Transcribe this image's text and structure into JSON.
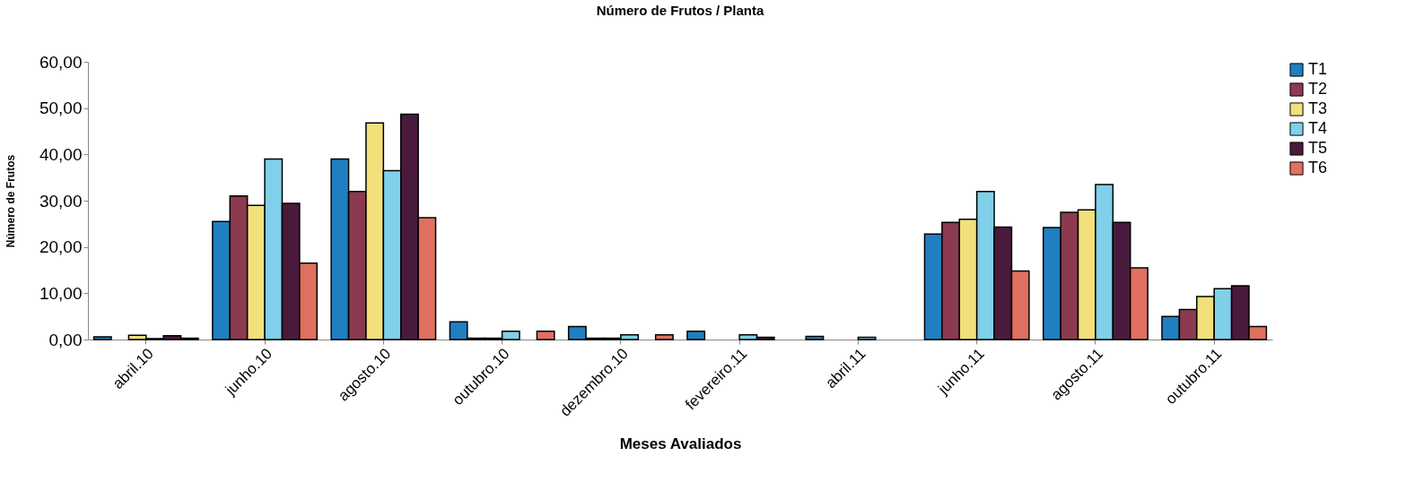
{
  "chart_data": {
    "type": "bar",
    "title": "Número de Frutos / Planta",
    "xlabel": "Meses Avaliados",
    "ylabel": "Número de Frutos",
    "categories": [
      "abril.10",
      "junho.10",
      "agosto.10",
      "outubro.10",
      "dezembro.10",
      "fevereiro.11",
      "abril.11",
      "junho.11",
      "agosto.11",
      "outubro.11"
    ],
    "series": [
      {
        "name": "T1",
        "color": "#1f7fc0",
        "values": [
          0.6,
          25.5,
          39,
          3.8,
          2.8,
          1.8,
          0.7,
          22.8,
          24.2,
          5
        ]
      },
      {
        "name": "T2",
        "color": "#8b3a4f",
        "values": [
          null,
          31,
          32,
          0.3,
          0.3,
          null,
          null,
          25.3,
          27.5,
          6.5
        ]
      },
      {
        "name": "T3",
        "color": "#f2e07a",
        "values": [
          0.9,
          29,
          46.8,
          0.3,
          0.3,
          null,
          null,
          26,
          28,
          9.3
        ]
      },
      {
        "name": "T4",
        "color": "#7fd0e8",
        "values": [
          0.2,
          39,
          36.5,
          1.8,
          1,
          1,
          0.5,
          32,
          33.5,
          11
        ]
      },
      {
        "name": "T5",
        "color": "#4a1a3c",
        "values": [
          0.8,
          29.4,
          48.7,
          null,
          null,
          0.5,
          null,
          24.3,
          25.3,
          11.6
        ]
      },
      {
        "name": "T6",
        "color": "#e07060",
        "values": [
          0.3,
          16.5,
          26.3,
          1.8,
          1,
          null,
          null,
          14.8,
          15.5,
          2.8
        ]
      }
    ],
    "ylim": [
      0,
      60
    ],
    "yticks": [
      {
        "value": 0,
        "label": "0,00"
      },
      {
        "value": 10,
        "label": "10,00"
      },
      {
        "value": 20,
        "label": "20,00"
      },
      {
        "value": 30,
        "label": "30,00"
      },
      {
        "value": 40,
        "label": "40,00"
      },
      {
        "value": 50,
        "label": "50,00"
      },
      {
        "value": 60,
        "label": "60,00"
      }
    ],
    "grid": false,
    "legend": "right"
  }
}
